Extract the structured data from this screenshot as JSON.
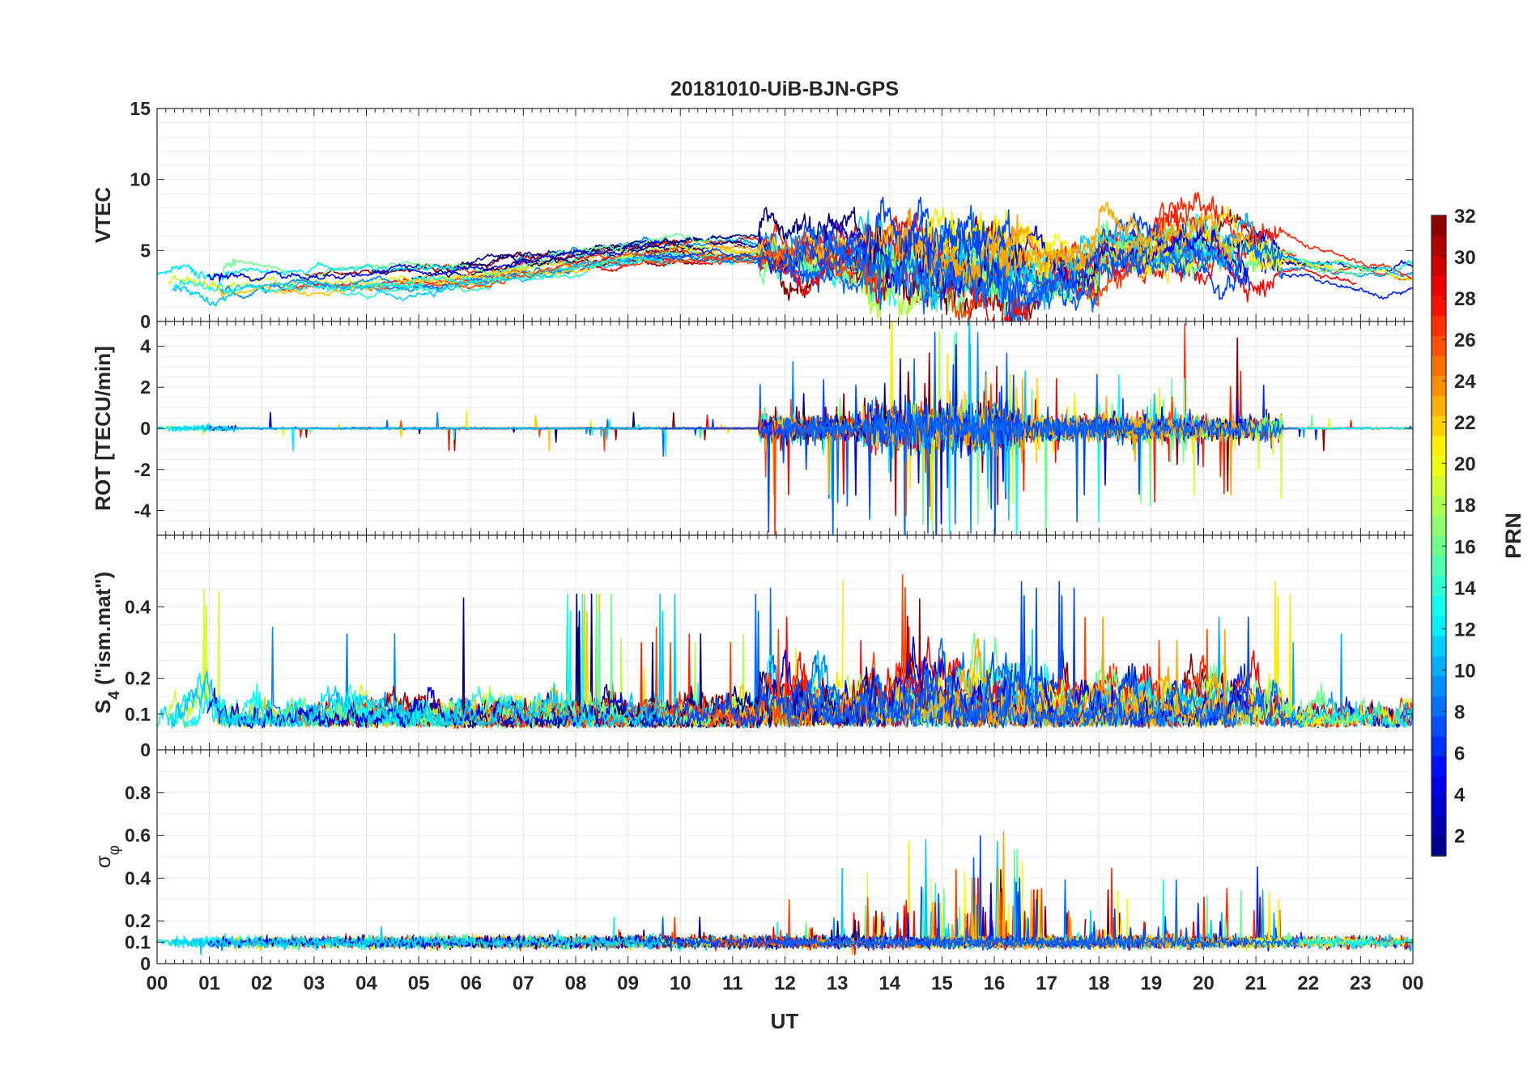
{
  "chart_data": {
    "type": "line",
    "title": "20181010-UiB-BJN-GPS",
    "xlabel": "UT",
    "xticks": [
      "00",
      "01",
      "02",
      "03",
      "04",
      "05",
      "06",
      "07",
      "08",
      "09",
      "10",
      "11",
      "12",
      "13",
      "14",
      "15",
      "16",
      "17",
      "18",
      "19",
      "20",
      "21",
      "22",
      "23",
      "00"
    ],
    "xlim": [
      0,
      24
    ],
    "panels": [
      {
        "ylabel": "VTEC",
        "ylim": [
          0,
          15
        ],
        "yticks": [
          "0",
          "5",
          "10",
          "15"
        ],
        "ytick_values": [
          0,
          5,
          10,
          15
        ]
      },
      {
        "ylabel": "ROT [TECU/min]",
        "ylim": [
          -5.2,
          5.2
        ],
        "yticks": [
          "-4",
          "-2",
          "0",
          "2",
          "4"
        ],
        "ytick_values": [
          -4,
          -2,
          0,
          2,
          4
        ]
      },
      {
        "ylabel": "S",
        "ylabel_sub": "4",
        "ylabel_suffix": " (\"ism.mat\")",
        "ylim": [
          0,
          0.6
        ],
        "yticks": [
          "0",
          "0.1",
          "0.2",
          "0.4"
        ],
        "ytick_values": [
          0,
          0.1,
          0.2,
          0.4
        ]
      },
      {
        "ylabel": "σ",
        "ylabel_sub": "φ",
        "ylim": [
          0,
          1
        ],
        "yticks": [
          "0",
          "0.1",
          "0.2",
          "0.4",
          "0.6",
          "0.8"
        ],
        "ytick_values": [
          0,
          0.1,
          0.2,
          0.4,
          0.6,
          0.8
        ]
      }
    ],
    "colorbar": {
      "label": "PRN",
      "range": [
        1,
        32
      ],
      "ticks": [
        "2",
        "4",
        "6",
        "8",
        "10",
        "12",
        "14",
        "16",
        "18",
        "20",
        "22",
        "24",
        "26",
        "28",
        "30",
        "32"
      ],
      "tick_values": [
        2,
        4,
        6,
        8,
        10,
        12,
        14,
        16,
        18,
        20,
        22,
        24,
        26,
        28,
        30,
        32
      ],
      "colormap": "jet"
    },
    "grid": true
  }
}
